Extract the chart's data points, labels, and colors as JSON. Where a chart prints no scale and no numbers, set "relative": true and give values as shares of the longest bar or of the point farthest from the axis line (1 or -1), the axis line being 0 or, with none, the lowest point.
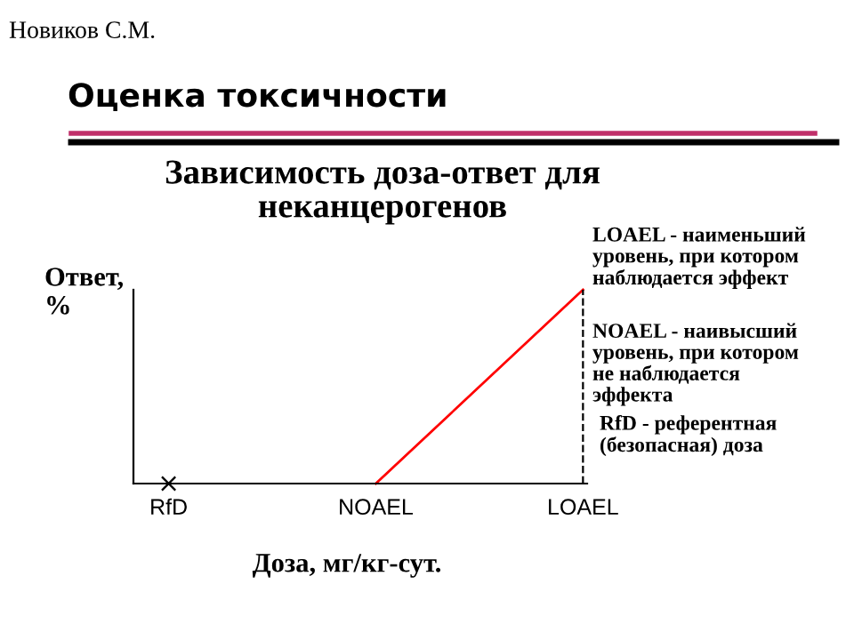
{
  "chart_data": {
    "type": "line",
    "title": "Оценка токсичности",
    "subtitle": "Зависимость доза-ответ для\nнеканцерогенов",
    "ylabel": "Ответ,\n%",
    "xlabel": "Доза, мг/кг-сут.",
    "categories": [
      "RfD",
      "NOAEL",
      "LOAEL"
    ],
    "relative": true,
    "series": [
      {
        "color": "#ff0000",
        "values": [
          null,
          0,
          1
        ]
      },
      {
        "type": "scatter",
        "marker": "cross",
        "color": "#000000",
        "values": [
          0,
          null,
          null
        ]
      }
    ],
    "ref_lines": [
      {
        "axis": "x",
        "value": "LOAEL",
        "color": "#000000",
        "line_style": "dashed"
      }
    ],
    "annotations": [
      "Новиков С.М.",
      "LOAEL - наименьший\nуровень, при котором\nнаблюдается эффект",
      "NOAEL - наивысший\nуровень, при котором\nне наблюдается\nэффекта",
      "RfD - референтная\n(безопасная) доза"
    ],
    "grid": false,
    "legend": false
  }
}
